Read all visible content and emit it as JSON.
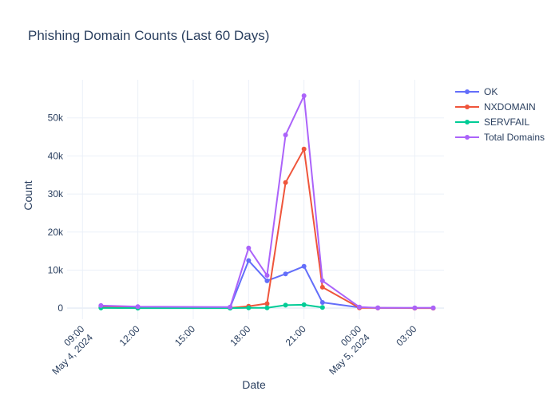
{
  "chart_data": {
    "type": "line",
    "title": "Phishing Domain Counts (Last 60 Days)",
    "xlabel": "Date",
    "ylabel": "Count",
    "x_ticks": [
      {
        "t": "2024-05-04T09:00",
        "lines": [
          "09:00",
          "May 4, 2024"
        ]
      },
      {
        "t": "2024-05-04T12:00",
        "lines": [
          "12:00"
        ]
      },
      {
        "t": "2024-05-04T15:00",
        "lines": [
          "15:00"
        ]
      },
      {
        "t": "2024-05-04T18:00",
        "lines": [
          "18:00"
        ]
      },
      {
        "t": "2024-05-04T21:00",
        "lines": [
          "21:00"
        ]
      },
      {
        "t": "2024-05-05T00:00",
        "lines": [
          "00:00",
          "May 5, 2024"
        ]
      },
      {
        "t": "2024-05-05T03:00",
        "lines": [
          "03:00"
        ]
      }
    ],
    "xlim": [
      "2024-05-04T08:10",
      "2024-05-05T04:35"
    ],
    "ylim": [
      -2900,
      60000
    ],
    "y_ticks": [
      {
        "v": 0,
        "label": "0"
      },
      {
        "v": 10000,
        "label": "10k"
      },
      {
        "v": 20000,
        "label": "20k"
      },
      {
        "v": 30000,
        "label": "30k"
      },
      {
        "v": 40000,
        "label": "40k"
      },
      {
        "v": 50000,
        "label": "50k"
      }
    ],
    "grid": true,
    "legend_position": "top-right",
    "series": [
      {
        "name": "OK",
        "color": "#636efa",
        "x": [
          "2024-05-04T10:00",
          "2024-05-04T12:00",
          "2024-05-04T17:00",
          "2024-05-04T18:00",
          "2024-05-04T19:00",
          "2024-05-04T20:00",
          "2024-05-04T21:00",
          "2024-05-04T22:00",
          "2024-05-05T00:00",
          "2024-05-05T01:00",
          "2024-05-05T03:00",
          "2024-05-05T04:00"
        ],
        "y": [
          500,
          300,
          200,
          12500,
          7200,
          9000,
          11000,
          1500,
          200,
          100,
          50,
          50
        ]
      },
      {
        "name": "NXDOMAIN",
        "color": "#ef553b",
        "x": [
          "2024-05-04T10:00",
          "2024-05-04T12:00",
          "2024-05-04T17:00",
          "2024-05-04T18:00",
          "2024-05-04T19:00",
          "2024-05-04T20:00",
          "2024-05-04T21:00",
          "2024-05-04T22:00",
          "2024-05-05T00:00",
          "2024-05-05T01:00",
          "2024-05-05T03:00",
          "2024-05-05T04:00"
        ],
        "y": [
          200,
          100,
          50,
          500,
          1200,
          33000,
          41800,
          5500,
          100,
          50,
          20,
          20
        ]
      },
      {
        "name": "SERVFAIL",
        "color": "#00cc96",
        "x": [
          "2024-05-04T10:00",
          "2024-05-04T12:00",
          "2024-05-04T17:00",
          "2024-05-04T18:00",
          "2024-05-04T19:00",
          "2024-05-04T20:00",
          "2024-05-04T21:00",
          "2024-05-04T22:00"
        ],
        "y": [
          50,
          20,
          10,
          100,
          100,
          800,
          900,
          200
        ]
      },
      {
        "name": "Total Domains",
        "color": "#ab63fa",
        "x": [
          "2024-05-04T10:00",
          "2024-05-04T12:00",
          "2024-05-04T17:00",
          "2024-05-04T18:00",
          "2024-05-04T19:00",
          "2024-05-04T20:00",
          "2024-05-04T21:00",
          "2024-05-04T22:00",
          "2024-05-05T00:00",
          "2024-05-05T01:00",
          "2024-05-05T03:00",
          "2024-05-05T04:00"
        ],
        "y": [
          700,
          400,
          300,
          15800,
          8600,
          45500,
          55800,
          7200,
          300,
          100,
          70,
          70
        ]
      }
    ]
  }
}
